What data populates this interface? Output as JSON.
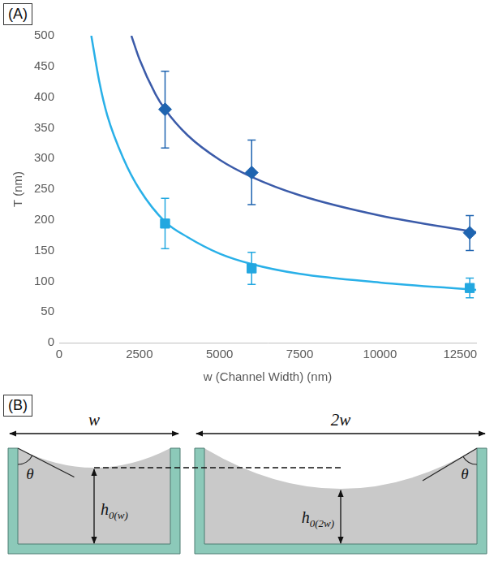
{
  "chart_data": {
    "type": "scatter",
    "label": "(A)",
    "x_label": "w (Channel Width) (nm)",
    "y_label": "T (nm)",
    "xlim": [
      0,
      13000
    ],
    "xticks": [
      0,
      2500,
      5000,
      7500,
      10000,
      12500
    ],
    "ylim": [
      0,
      500
    ],
    "yticks": [
      0,
      50,
      100,
      150,
      200,
      250,
      300,
      350,
      400,
      450,
      500
    ],
    "grid": false,
    "series": [
      {
        "type": "scatter",
        "marker": "diamond",
        "color": "#1f64b0",
        "x": [
          3300,
          6000,
          12800
        ],
        "values": [
          380,
          277,
          179
        ],
        "lower": [
          317,
          225,
          150
        ],
        "upper": [
          442,
          330,
          207
        ]
      },
      {
        "type": "scatter",
        "marker": "square",
        "color": "#22a7e0",
        "x": [
          3300,
          6000,
          12800
        ],
        "values": [
          194,
          121,
          89
        ],
        "lower": [
          153,
          95,
          73
        ],
        "upper": [
          235,
          147,
          105
        ]
      },
      {
        "type": "line",
        "line_style": "solid",
        "color": "#3b5ba9",
        "x": [
          2250,
          2500,
          3000,
          3300,
          4000,
          5000,
          6000,
          7500,
          10000,
          13000
        ],
        "values": [
          500,
          462,
          405,
          380,
          338,
          298,
          270,
          240,
          207,
          180
        ]
      },
      {
        "type": "line",
        "line_style": "solid",
        "color": "#29b0e8",
        "x": [
          1000,
          1250,
          1500,
          2000,
          2500,
          3300,
          4000,
          5000,
          6000,
          7500,
          10000,
          13000
        ],
        "values": [
          500,
          425,
          370,
          300,
          250,
          197,
          172,
          145,
          128,
          112,
          98,
          86
        ]
      }
    ]
  },
  "diagram": {
    "label": "(B)",
    "channels": [
      {
        "width_label": "w",
        "angle_label": "θ",
        "height_label": "h",
        "height_subscript": "0(w)"
      },
      {
        "width_label": "2w",
        "angle_label": "θ",
        "height_label": "h",
        "height_subscript": "0(2w)"
      }
    ]
  }
}
